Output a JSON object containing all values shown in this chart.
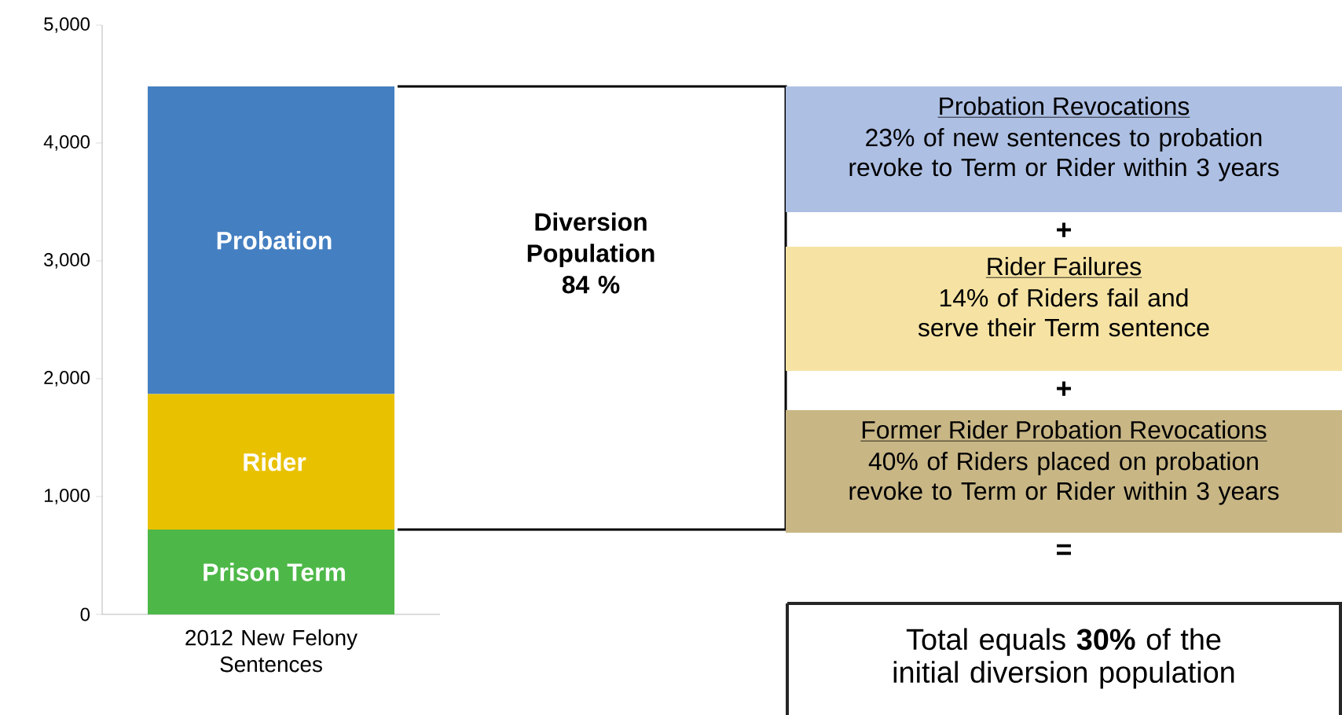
{
  "chart_data": {
    "type": "bar",
    "stacked": true,
    "categories": [
      "2012 New Felony Sentences"
    ],
    "series": [
      {
        "name": "Prison Term",
        "color": "#4db848",
        "values": [
          720
        ]
      },
      {
        "name": "Rider",
        "color": "#e8c100",
        "values": [
          1150
        ]
      },
      {
        "name": "Probation",
        "color": "#447fc1",
        "values": [
          2610
        ]
      }
    ],
    "ylim": [
      0,
      5000
    ],
    "yticks": [
      0,
      {
        "value": 1000,
        "label": "1,000"
      },
      {
        "value": 2000,
        "label": "2,000"
      },
      {
        "value": 3000,
        "label": "3,000"
      },
      {
        "value": 4000,
        "label": "4,000"
      },
      {
        "value": 5000,
        "label": "5,000"
      }
    ],
    "annotations": [
      "Diversion Population 84 %",
      "Probation Revocations",
      "23% of new sentences to probation revoke to Term or Rider within 3 years",
      "+",
      "Rider Failures",
      "14% of Riders fail and serve their Term sentence",
      "+",
      "Former Rider Probation Revocations",
      "40% of Riders placed on probation revoke to Term or Rider within 3 years",
      "=",
      "Total equals **30%** of the initial diversion population"
    ]
  }
}
